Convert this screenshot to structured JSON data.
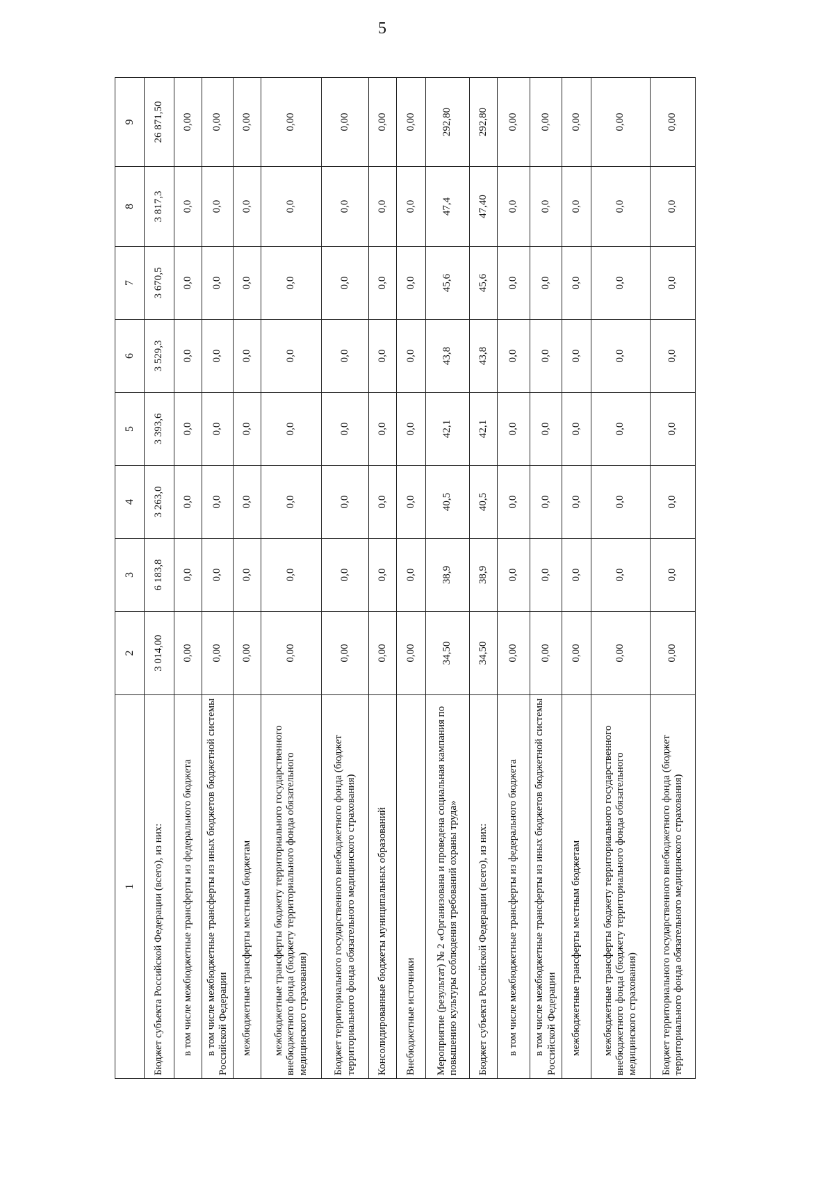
{
  "page_number": "5",
  "table": {
    "headers": [
      "1",
      "2",
      "3",
      "4",
      "5",
      "6",
      "7",
      "8",
      "9"
    ],
    "rows": [
      {
        "label": "Бюджет субъекта Российской Федерации (всего), из них:",
        "indent": false,
        "values": [
          "3 014,00",
          "6 183,8",
          "3 263,0",
          "3 393,6",
          "3 529,3",
          "3 670,5",
          "3 817,3",
          "26 871,50"
        ]
      },
      {
        "label": "в том числе межбюджетные трансферты из федерального бюджета",
        "indent": true,
        "values": [
          "0,00",
          "0,0",
          "0,0",
          "0,0",
          "0,0",
          "0,0",
          "0,0",
          "0,00"
        ]
      },
      {
        "label": "в том числе межбюджетные трансферты из иных бюджетов бюджетной системы Российской Федерации",
        "indent": true,
        "values": [
          "0,00",
          "0,0",
          "0,0",
          "0,0",
          "0,0",
          "0,0",
          "0,0",
          "0,00"
        ]
      },
      {
        "label": "межбюджетные трансферты местным бюджетам",
        "indent": true,
        "values": [
          "0,00",
          "0,0",
          "0,0",
          "0,0",
          "0,0",
          "0,0",
          "0,0",
          "0,00"
        ]
      },
      {
        "label": "межбюджетные трансферты бюджету территориального государственного внебюджетного фонда (бюджету территориального фонда обязательного медицинского страхования)",
        "indent": true,
        "values": [
          "0,00",
          "0,0",
          "0,0",
          "0,0",
          "0,0",
          "0,0",
          "0,0",
          "0,00"
        ]
      },
      {
        "label": "Бюджет территориального государственного внебюджетного фонда (бюджет территориального фонда обязательного медицинского страхования)",
        "indent": false,
        "values": [
          "0,00",
          "0,0",
          "0,0",
          "0,0",
          "0,0",
          "0,0",
          "0,0",
          "0,00"
        ]
      },
      {
        "label": "Консолидированные бюджеты муниципальных образований",
        "indent": false,
        "values": [
          "0,00",
          "0,0",
          "0,0",
          "0,0",
          "0,0",
          "0,0",
          "0,0",
          "0,00"
        ]
      },
      {
        "label": "Внебюджетные источники",
        "indent": false,
        "values": [
          "0,00",
          "0,0",
          "0,0",
          "0,0",
          "0,0",
          "0,0",
          "0,0",
          "0,00"
        ]
      },
      {
        "label": "Мероприятие (результат) № 2 «Организована и проведена социальная кампания по повышению культуры соблюдения требований охраны труда»",
        "indent": false,
        "values": [
          "34,50",
          "38,9",
          "40,5",
          "42,1",
          "43,8",
          "45,6",
          "47,4",
          "292,80"
        ]
      },
      {
        "label": "Бюджет субъекта Российской Федерации (всего), из них:",
        "indent": false,
        "values": [
          "34,50",
          "38,9",
          "40,5",
          "42,1",
          "43,8",
          "45,6",
          "47,40",
          "292,80"
        ]
      },
      {
        "label": "в том числе межбюджетные трансферты из федерального бюджета",
        "indent": true,
        "values": [
          "0,00",
          "0,0",
          "0,0",
          "0,0",
          "0,0",
          "0,0",
          "0,0",
          "0,00"
        ]
      },
      {
        "label": "в том числе межбюджетные трансферты из иных бюджетов бюджетной системы Российской Федерации",
        "indent": true,
        "values": [
          "0,00",
          "0,0",
          "0,0",
          "0,0",
          "0,0",
          "0,0",
          "0,0",
          "0,00"
        ]
      },
      {
        "label": "межбюджетные трансферты местным бюджетам",
        "indent": true,
        "values": [
          "0,00",
          "0,0",
          "0,0",
          "0,0",
          "0,0",
          "0,0",
          "0,0",
          "0,00"
        ]
      },
      {
        "label": "межбюджетные трансферты бюджету территориального государственного внебюджетного фонда (бюджету территориального фонда обязательного медицинского страхования)",
        "indent": true,
        "values": [
          "0,00",
          "0,0",
          "0,0",
          "0,0",
          "0,0",
          "0,0",
          "0,0",
          "0,00"
        ]
      },
      {
        "label": "Бюджет территориального государственного внебюджетного фонда (бюджет территориального фонда обязательного медицинского страхования)",
        "indent": false,
        "values": [
          "0,00",
          "0,0",
          "0,0",
          "0,0",
          "0,0",
          "0,0",
          "0,0",
          "0,00"
        ]
      }
    ]
  }
}
